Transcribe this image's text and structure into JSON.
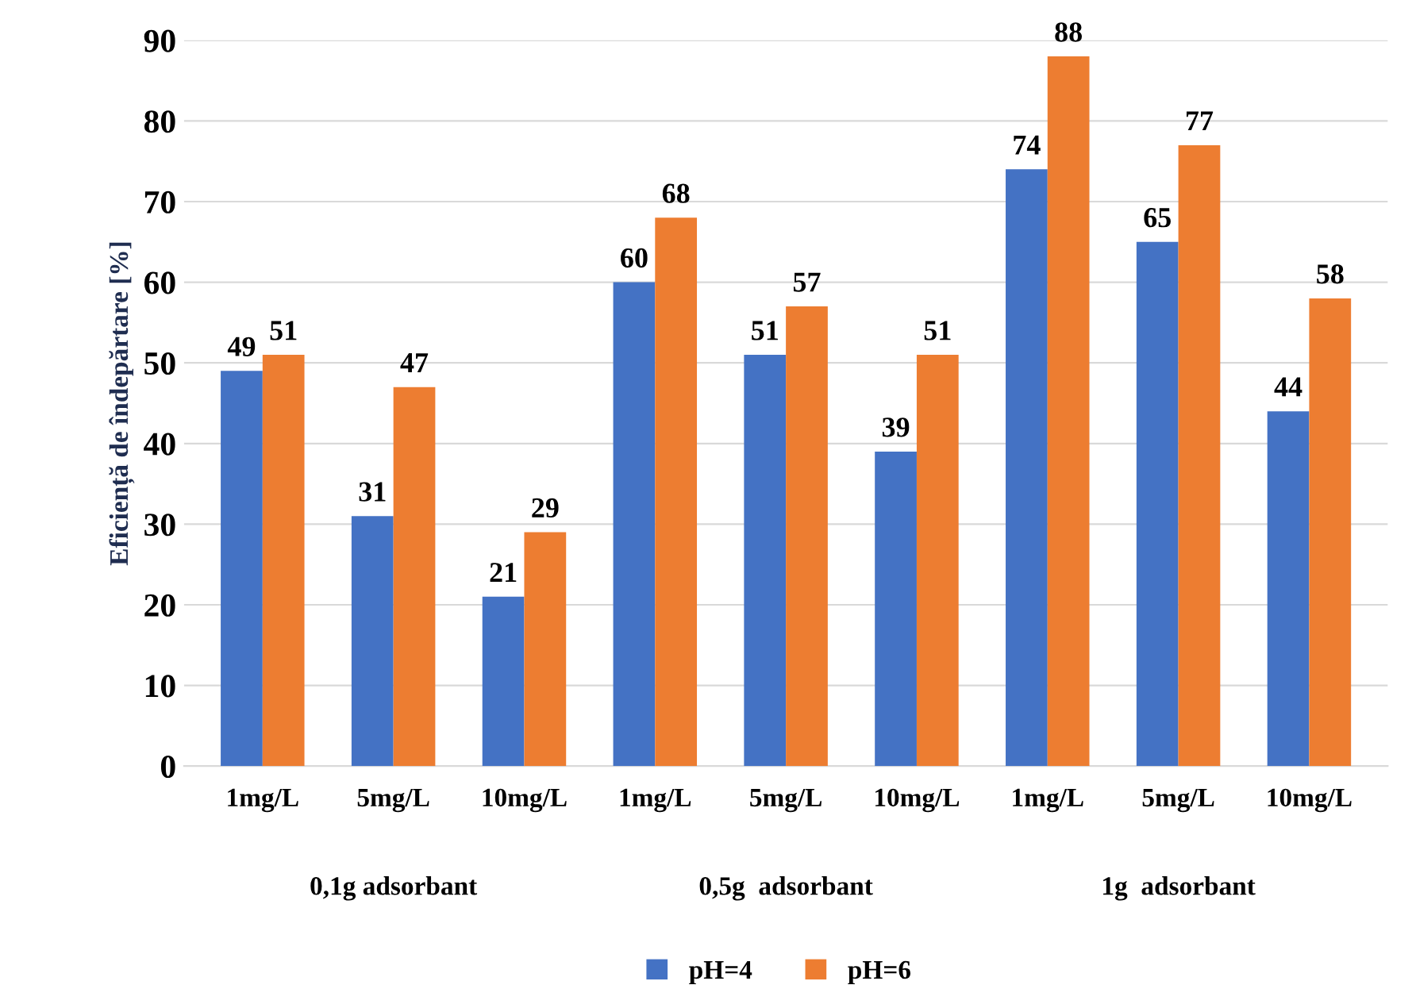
{
  "chart_data": {
    "type": "bar",
    "ylabel": "Eficiență de îndepărtare [%]",
    "categories": [
      "1mg/L",
      "5mg/L",
      "10mg/L",
      "1mg/L",
      "5mg/L",
      "10mg/L",
      "1mg/L",
      "5mg/L",
      "10mg/L"
    ],
    "series": [
      {
        "name": "pH=4",
        "color": "#4472c4",
        "values": [
          49,
          31,
          21,
          60,
          51,
          39,
          74,
          65,
          44
        ]
      },
      {
        "name": "pH=6",
        "color": "#ed7d31",
        "values": [
          51,
          47,
          29,
          68,
          57,
          51,
          88,
          77,
          58
        ]
      }
    ],
    "annotations": [
      "0,1g adsorbant",
      "0,5g  adsorbant",
      "1g  adsorbant"
    ],
    "ylim": [
      0,
      90
    ],
    "yticks": [
      0,
      10,
      20,
      30,
      40,
      50,
      60,
      70,
      80,
      90
    ],
    "grid": "y",
    "legend": "bottom",
    "data_labels": true
  }
}
